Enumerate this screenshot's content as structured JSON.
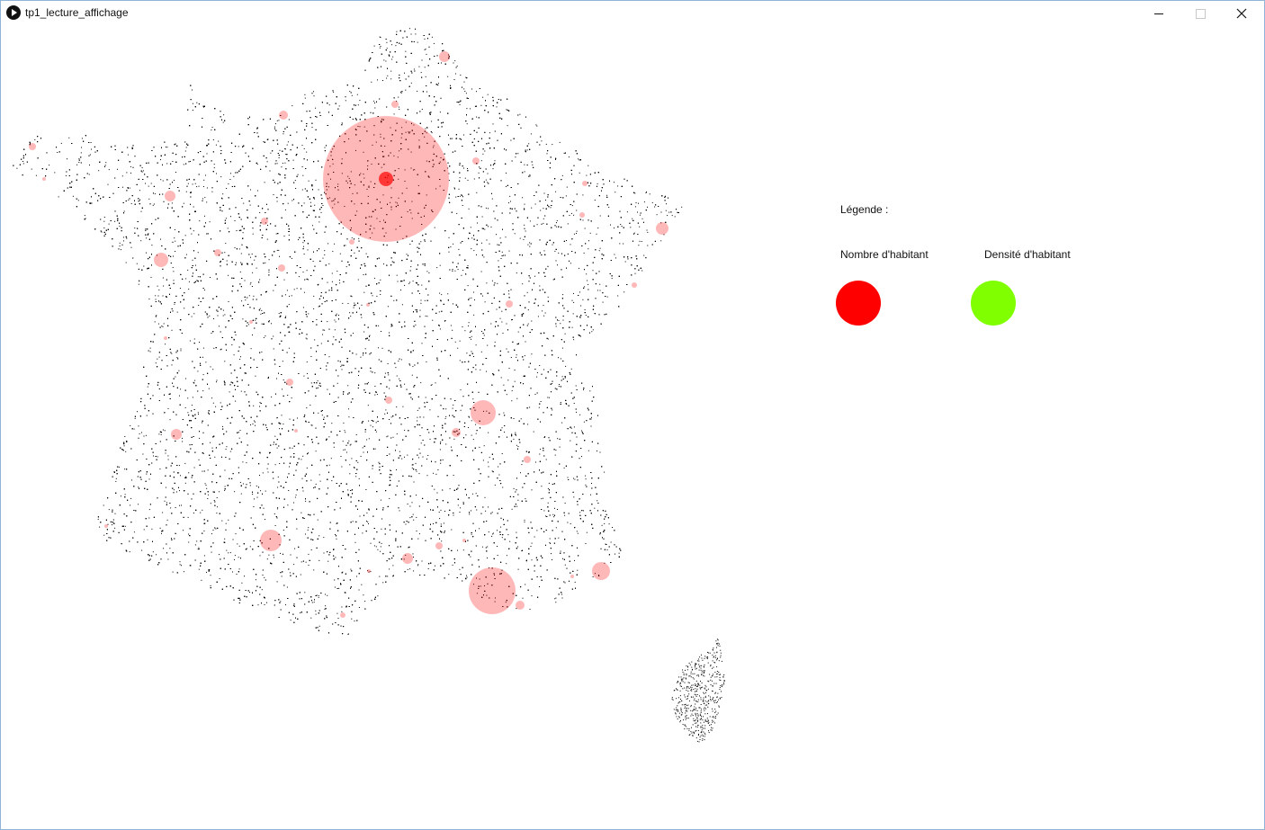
{
  "window": {
    "title": "tp1_lecture_affichage",
    "icon": "play-icon"
  },
  "legend": {
    "title": "Légende :",
    "items": [
      {
        "label": "Nombre d'habitant",
        "color": "#ff0000"
      },
      {
        "label": "Densité d'habitant",
        "color": "#80ff00"
      }
    ]
  },
  "map": {
    "dot_color": "#000000",
    "bubble_color": "#ff0000",
    "bubble_opacity": 0.28
  }
}
